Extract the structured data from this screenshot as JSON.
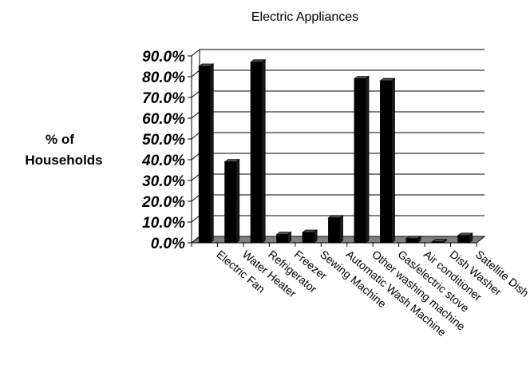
{
  "chart_data": {
    "type": "bar",
    "title": "Electric Appliances",
    "ylabel": [
      "% of",
      "Households"
    ],
    "xlabel": "",
    "ylim": [
      0,
      90
    ],
    "y_ticks": [
      "0.0%",
      "10.0%",
      "20.0%",
      "30.0%",
      "40.0%",
      "50.0%",
      "60.0%",
      "70.0%",
      "80.0%",
      "90.0%"
    ],
    "categories": [
      "Electric Fan",
      "Water Heater",
      "Refrigerator",
      "Freezer",
      "Sewing Machine",
      "Automatic Wash Machine",
      "Other washing machine",
      "Gas/electric stove",
      "Air conditioner",
      "Dish Washer",
      "Satellite Dish"
    ],
    "values": [
      85,
      39,
      87,
      4,
      5,
      12,
      79,
      78,
      2,
      0.5,
      3.5
    ],
    "bar_color": "#000000",
    "grid": true,
    "legend": false
  }
}
